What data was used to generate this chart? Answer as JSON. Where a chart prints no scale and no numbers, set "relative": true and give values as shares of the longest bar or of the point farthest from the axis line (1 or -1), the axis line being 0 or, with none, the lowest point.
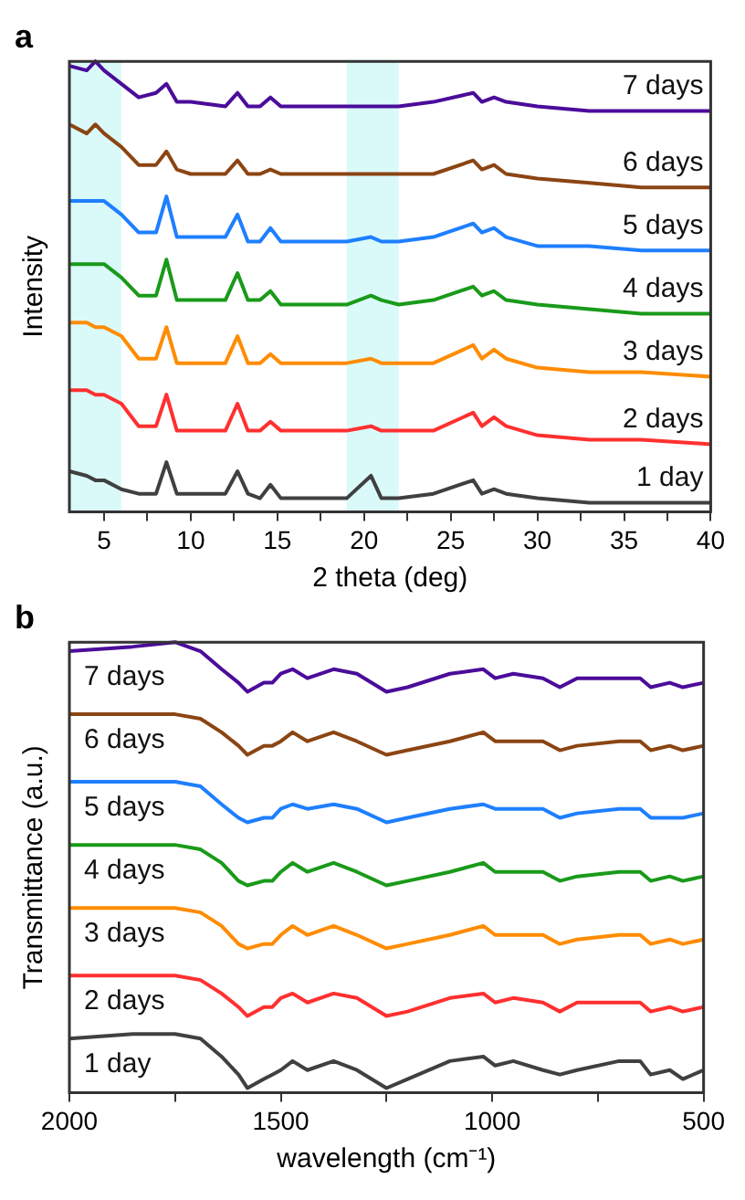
{
  "chart_data": [
    {
      "type": "line",
      "title": "a",
      "xlabel": "2 theta (deg)",
      "ylabel": "Intensity",
      "relative": true,
      "legend": false,
      "grid": false,
      "marker": "none",
      "line_style": "solid",
      "xlim": [
        3,
        40
      ],
      "xticks": [
        5,
        {
          "value": 7.5,
          "label": null
        },
        10,
        {
          "value": 12.5,
          "label": null
        },
        15,
        {
          "value": 17.5,
          "label": null
        },
        20,
        {
          "value": 22.5,
          "label": null
        },
        25,
        {
          "value": 27.5,
          "label": null
        },
        30,
        {
          "value": 32.5,
          "label": null
        },
        35,
        {
          "value": 37.5,
          "label": null
        },
        40
      ],
      "bands": [
        {
          "axis": "x",
          "from": 3,
          "to": 6,
          "color": "#dafafa"
        },
        {
          "axis": "x",
          "from": 19,
          "to": 22,
          "color": "#dafafa"
        }
      ],
      "x": [
        3,
        4,
        4.5,
        5,
        6,
        7,
        8,
        8.6,
        9.2,
        10,
        12,
        12.7,
        13.3,
        14,
        14.6,
        15.2,
        17,
        19,
        20.4,
        21,
        22,
        24,
        26.3,
        26.8,
        27.5,
        28.2,
        30,
        33,
        36,
        40
      ],
      "series": [
        {
          "name": "1 day",
          "color": "#404040",
          "values": [
            0.09,
            0.08,
            0.07,
            0.07,
            0.05,
            0.04,
            0.04,
            0.11,
            0.04,
            0.04,
            0.04,
            0.09,
            0.04,
            0.03,
            0.06,
            0.03,
            0.03,
            0.03,
            0.08,
            0.03,
            0.03,
            0.04,
            0.07,
            0.04,
            0.05,
            0.04,
            0.03,
            0.02,
            0.02,
            0.02
          ]
        },
        {
          "name": "2 days",
          "color": "#ff3030",
          "values": [
            0.27,
            0.27,
            0.26,
            0.26,
            0.24,
            0.19,
            0.19,
            0.26,
            0.18,
            0.18,
            0.18,
            0.24,
            0.18,
            0.18,
            0.2,
            0.18,
            0.18,
            0.18,
            0.19,
            0.18,
            0.18,
            0.18,
            0.22,
            0.19,
            0.21,
            0.19,
            0.17,
            0.16,
            0.16,
            0.15
          ]
        },
        {
          "name": "3 days",
          "color": "#ff8c00",
          "values": [
            0.42,
            0.42,
            0.41,
            0.41,
            0.39,
            0.34,
            0.34,
            0.41,
            0.33,
            0.33,
            0.33,
            0.39,
            0.33,
            0.33,
            0.35,
            0.33,
            0.33,
            0.33,
            0.34,
            0.33,
            0.33,
            0.33,
            0.37,
            0.34,
            0.36,
            0.34,
            0.32,
            0.31,
            0.31,
            0.3
          ]
        },
        {
          "name": "4 days",
          "color": "#1a9a1a",
          "values": [
            0.55,
            0.55,
            0.55,
            0.55,
            0.52,
            0.48,
            0.48,
            0.56,
            0.47,
            0.47,
            0.47,
            0.53,
            0.47,
            0.47,
            0.49,
            0.46,
            0.46,
            0.46,
            0.48,
            0.47,
            0.46,
            0.47,
            0.5,
            0.48,
            0.49,
            0.47,
            0.46,
            0.45,
            0.44,
            0.44
          ]
        },
        {
          "name": "5 days",
          "color": "#1e7fff",
          "values": [
            0.69,
            0.69,
            0.69,
            0.69,
            0.66,
            0.62,
            0.62,
            0.7,
            0.61,
            0.61,
            0.61,
            0.66,
            0.6,
            0.6,
            0.63,
            0.6,
            0.6,
            0.6,
            0.61,
            0.6,
            0.6,
            0.61,
            0.64,
            0.62,
            0.63,
            0.61,
            0.59,
            0.59,
            0.58,
            0.58
          ]
        },
        {
          "name": "6 days",
          "color": "#8b4513",
          "values": [
            0.86,
            0.84,
            0.86,
            0.84,
            0.81,
            0.77,
            0.77,
            0.8,
            0.76,
            0.75,
            0.75,
            0.78,
            0.75,
            0.75,
            0.76,
            0.75,
            0.75,
            0.75,
            0.75,
            0.75,
            0.75,
            0.75,
            0.78,
            0.76,
            0.77,
            0.75,
            0.74,
            0.73,
            0.72,
            0.72
          ]
        },
        {
          "name": "7 days",
          "color": "#4b0c9a",
          "values": [
            0.99,
            0.98,
            1.0,
            0.98,
            0.95,
            0.92,
            0.93,
            0.95,
            0.91,
            0.91,
            0.9,
            0.93,
            0.9,
            0.9,
            0.92,
            0.9,
            0.9,
            0.9,
            0.9,
            0.9,
            0.9,
            0.91,
            0.93,
            0.91,
            0.92,
            0.91,
            0.9,
            0.89,
            0.89,
            0.89
          ]
        }
      ]
    },
    {
      "type": "line",
      "title": "b",
      "xlabel": "wavelength (cm⁻¹)",
      "ylabel": "Transmittance (a.u.)",
      "relative": true,
      "legend": false,
      "grid": false,
      "marker": "none",
      "line_style": "solid",
      "xlim": [
        2000,
        500
      ],
      "xticks": [
        2000,
        {
          "value": 1750,
          "label": null
        },
        1500,
        {
          "value": 1250,
          "label": null
        },
        1000,
        {
          "value": 750,
          "label": null
        },
        500
      ],
      "x": [
        2000,
        1850,
        1750,
        1690,
        1640,
        1600,
        1579,
        1540,
        1520,
        1500,
        1472,
        1437,
        1375,
        1320,
        1250,
        1200,
        1100,
        1021,
        993,
        950,
        880,
        840,
        799,
        700,
        650,
        625,
        580,
        549,
        500
      ],
      "series": [
        {
          "name": "1 day",
          "color": "#404040",
          "values": [
            0.12,
            0.13,
            0.13,
            0.12,
            0.08,
            0.04,
            0.01,
            0.03,
            0.04,
            0.05,
            0.07,
            0.05,
            0.07,
            0.05,
            0.01,
            0.03,
            0.07,
            0.08,
            0.06,
            0.07,
            0.05,
            0.04,
            0.05,
            0.07,
            0.07,
            0.04,
            0.05,
            0.03,
            0.05
          ]
        },
        {
          "name": "2 days",
          "color": "#ff3030",
          "values": [
            0.26,
            0.26,
            0.26,
            0.25,
            0.22,
            0.19,
            0.17,
            0.19,
            0.19,
            0.21,
            0.22,
            0.2,
            0.22,
            0.21,
            0.17,
            0.18,
            0.21,
            0.22,
            0.2,
            0.21,
            0.2,
            0.18,
            0.2,
            0.2,
            0.2,
            0.18,
            0.19,
            0.18,
            0.19
          ]
        },
        {
          "name": "3 days",
          "color": "#ff8c00",
          "values": [
            0.41,
            0.41,
            0.41,
            0.4,
            0.37,
            0.33,
            0.32,
            0.33,
            0.33,
            0.35,
            0.37,
            0.35,
            0.37,
            0.35,
            0.32,
            0.33,
            0.35,
            0.37,
            0.35,
            0.35,
            0.35,
            0.33,
            0.34,
            0.35,
            0.35,
            0.33,
            0.34,
            0.33,
            0.34
          ]
        },
        {
          "name": "4 days",
          "color": "#1a9a1a",
          "values": [
            0.55,
            0.55,
            0.55,
            0.54,
            0.51,
            0.47,
            0.46,
            0.47,
            0.47,
            0.49,
            0.51,
            0.49,
            0.51,
            0.49,
            0.46,
            0.47,
            0.49,
            0.51,
            0.49,
            0.49,
            0.49,
            0.47,
            0.48,
            0.49,
            0.49,
            0.47,
            0.48,
            0.47,
            0.48
          ]
        },
        {
          "name": "5 days",
          "color": "#1e7fff",
          "values": [
            0.69,
            0.69,
            0.69,
            0.68,
            0.64,
            0.61,
            0.6,
            0.61,
            0.61,
            0.63,
            0.64,
            0.63,
            0.64,
            0.63,
            0.6,
            0.61,
            0.63,
            0.64,
            0.63,
            0.63,
            0.63,
            0.61,
            0.62,
            0.63,
            0.63,
            0.61,
            0.61,
            0.61,
            0.62
          ]
        },
        {
          "name": "6 days",
          "color": "#8b4513",
          "values": [
            0.84,
            0.84,
            0.84,
            0.83,
            0.8,
            0.77,
            0.75,
            0.77,
            0.77,
            0.78,
            0.8,
            0.78,
            0.8,
            0.78,
            0.75,
            0.76,
            0.78,
            0.8,
            0.78,
            0.78,
            0.78,
            0.76,
            0.77,
            0.78,
            0.78,
            0.76,
            0.77,
            0.76,
            0.77
          ]
        },
        {
          "name": "7 days",
          "color": "#4b0c9a",
          "values": [
            0.98,
            0.99,
            1.0,
            0.98,
            0.94,
            0.91,
            0.89,
            0.91,
            0.91,
            0.93,
            0.94,
            0.92,
            0.94,
            0.93,
            0.89,
            0.9,
            0.93,
            0.94,
            0.92,
            0.93,
            0.92,
            0.9,
            0.92,
            0.92,
            0.92,
            0.9,
            0.91,
            0.9,
            0.91
          ]
        }
      ]
    }
  ]
}
